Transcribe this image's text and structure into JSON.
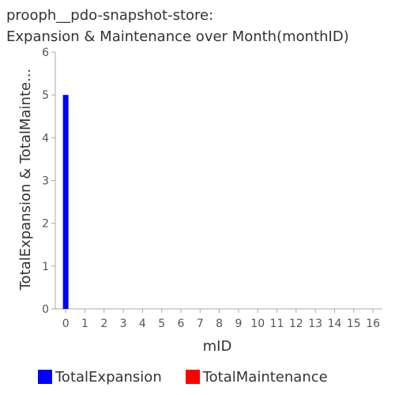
{
  "chart_data": {
    "type": "bar",
    "title_line1": "prooph__pdo-snapshot-store:",
    "title_line2": "Expansion & Maintenance over Month(monthID)",
    "xlabel": "mID",
    "ylabel": "TotalExpansion & TotalMainte...",
    "categories": [
      "0",
      "1",
      "2",
      "3",
      "4",
      "5",
      "6",
      "7",
      "8",
      "9",
      "10",
      "11",
      "12",
      "13",
      "14",
      "15",
      "16"
    ],
    "series": [
      {
        "name": "TotalExpansion",
        "color": "#0000ff",
        "values": [
          5,
          0,
          0,
          0,
          0,
          0,
          0,
          0,
          0,
          0,
          0,
          0,
          0,
          0,
          0,
          0,
          0
        ]
      },
      {
        "name": "TotalMaintenance",
        "color": "#ff0000",
        "values": [
          0,
          0,
          0,
          0,
          0,
          0,
          0,
          0,
          0,
          0,
          0,
          0,
          0,
          0,
          0,
          0,
          0
        ]
      }
    ],
    "ylim": [
      0,
      6
    ],
    "yticks": [
      "0",
      "1",
      "2",
      "3",
      "4",
      "5",
      "6"
    ],
    "grid": false,
    "legend": "bottom"
  }
}
